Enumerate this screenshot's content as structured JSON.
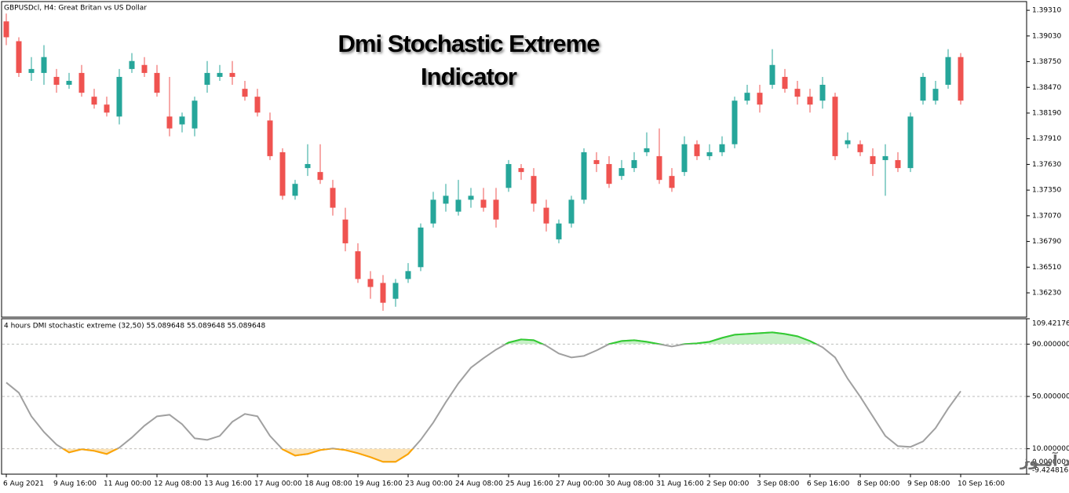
{
  "chart_data": [
    {
      "type": "candlestick",
      "header": "GBPUSDcl, H4:  Great Britan vs US Dollar",
      "title_lines": [
        "Dmi Stochastic Extreme",
        "Indicator"
      ],
      "categories": [
        "6 Aug 2021",
        null,
        null,
        null,
        "9 Aug 16:00",
        null,
        null,
        null,
        "11 Aug 00:00",
        null,
        null,
        null,
        "12 Aug 08:00",
        null,
        null,
        null,
        "13 Aug 16:00",
        null,
        null,
        null,
        "17 Aug 00:00",
        null,
        null,
        null,
        "18 Aug 08:00",
        null,
        null,
        null,
        "19 Aug 16:00",
        null,
        null,
        null,
        "23 Aug 00:00",
        null,
        null,
        null,
        "24 Aug 08:00",
        null,
        null,
        null,
        "25 Aug 16:00",
        null,
        null,
        null,
        "27 Aug 00:00",
        null,
        null,
        null,
        "30 Aug 08:00",
        null,
        null,
        null,
        "31 Aug 16:00",
        null,
        null,
        null,
        "2 Sep 00:00",
        null,
        null,
        null,
        "3 Sep 08:00",
        null,
        null,
        null,
        "6 Sep 16:00",
        null,
        null,
        null,
        "8 Sep 00:00",
        null,
        null,
        null,
        "9 Sep 08:00",
        null,
        null,
        null,
        "10 Sep 16:00"
      ],
      "open": [
        1.39189,
        1.38973,
        1.38627,
        1.38627,
        1.38584,
        1.38498,
        1.38627,
        1.38368,
        1.38282,
        1.38152,
        1.3867,
        1.38714,
        1.38627,
        1.38152,
        1.38066,
        1.38022,
        1.38498,
        1.38584,
        1.38627,
        1.38454,
        1.38368,
        1.38109,
        1.37763,
        1.37288,
        1.3759,
        1.37547,
        1.37374,
        1.37029,
        1.36683,
        1.36381,
        1.36338,
        1.36165,
        1.36381,
        1.3651,
        1.36986,
        1.37202,
        1.37115,
        1.37245,
        1.37245,
        1.37245,
        1.37374,
        1.3759,
        1.37504,
        1.37158,
        1.36813,
        1.36986,
        1.37245,
        1.37677,
        1.37634,
        1.37504,
        1.3759,
        1.37763,
        1.3772,
        1.37504,
        1.37547,
        1.3785,
        1.3772,
        1.37763,
        1.3785,
        1.38325,
        1.38411,
        1.38498,
        1.38584,
        1.38454,
        1.38368,
        1.38325,
        1.38368,
        1.3785,
        1.3785,
        1.3772,
        1.37677,
        1.37677,
        1.3759,
        1.38325,
        1.38325,
        1.38498,
        1.388
      ],
      "high": [
        1.39275,
        1.39016,
        1.388,
        1.3893,
        1.3867,
        1.38627,
        1.38714,
        1.38454,
        1.38368,
        1.3867,
        1.38843,
        1.388,
        1.38714,
        1.38584,
        1.38195,
        1.38368,
        1.38757,
        1.38714,
        1.38757,
        1.38541,
        1.38454,
        1.38195,
        1.37806,
        1.37461,
        1.3785,
        1.3785,
        1.37461,
        1.37158,
        1.3677,
        1.36467,
        1.36424,
        1.36381,
        1.36554,
        1.36986,
        1.37331,
        1.37418,
        1.37461,
        1.37374,
        1.37374,
        1.37374,
        1.37677,
        1.37634,
        1.3759,
        1.37245,
        1.37029,
        1.37288,
        1.37806,
        1.37763,
        1.3772,
        1.37677,
        1.37763,
        1.37979,
        1.38022,
        1.3759,
        1.37936,
        1.37893,
        1.3785,
        1.37936,
        1.38368,
        1.38498,
        1.38498,
        1.38886,
        1.3867,
        1.38541,
        1.38454,
        1.38584,
        1.38411,
        1.37979,
        1.37893,
        1.37806,
        1.3785,
        1.37763,
        1.38195,
        1.38627,
        1.38541,
        1.38886,
        1.38843
      ],
      "low": [
        1.3893,
        1.38584,
        1.38541,
        1.38498,
        1.38411,
        1.38454,
        1.38368,
        1.38238,
        1.38152,
        1.38066,
        1.38627,
        1.38584,
        1.38368,
        1.37936,
        1.37979,
        1.37936,
        1.38411,
        1.38541,
        1.38498,
        1.38325,
        1.38152,
        1.37677,
        1.37245,
        1.37245,
        1.37504,
        1.37418,
        1.37072,
        1.36683,
        1.36338,
        1.36165,
        1.36035,
        1.36078,
        1.36338,
        1.36467,
        1.36942,
        1.37115,
        1.37072,
        1.37158,
        1.37115,
        1.36942,
        1.37331,
        1.37461,
        1.37115,
        1.36899,
        1.3677,
        1.36942,
        1.37202,
        1.37547,
        1.37374,
        1.37461,
        1.37547,
        1.3772,
        1.37418,
        1.37331,
        1.37504,
        1.37677,
        1.37677,
        1.3772,
        1.37806,
        1.38282,
        1.38195,
        1.38454,
        1.38411,
        1.38282,
        1.38195,
        1.38238,
        1.37677,
        1.37806,
        1.3772,
        1.37504,
        1.37288,
        1.37547,
        1.37547,
        1.38282,
        1.38282,
        1.38454,
        1.38282
      ],
      "close": [
        1.39016,
        1.38627,
        1.3867,
        1.388,
        1.38498,
        1.38541,
        1.38411,
        1.38282,
        1.38195,
        1.38584,
        1.38757,
        1.38627,
        1.38411,
        1.38022,
        1.38152,
        1.38325,
        1.38627,
        1.38627,
        1.38584,
        1.38368,
        1.38195,
        1.3772,
        1.37288,
        1.37418,
        1.37634,
        1.37461,
        1.37158,
        1.3677,
        1.36381,
        1.36294,
        1.36122,
        1.36338,
        1.36467,
        1.36942,
        1.37245,
        1.37288,
        1.37245,
        1.37288,
        1.37158,
        1.37029,
        1.37634,
        1.37547,
        1.37202,
        1.36986,
        1.36986,
        1.37245,
        1.37763,
        1.37634,
        1.37418,
        1.3759,
        1.37677,
        1.37806,
        1.37461,
        1.37374,
        1.3785,
        1.3772,
        1.37763,
        1.3785,
        1.38325,
        1.38411,
        1.38282,
        1.38714,
        1.38454,
        1.38368,
        1.38282,
        1.38498,
        1.3772,
        1.37893,
        1.37763,
        1.37634,
        1.3772,
        1.3759,
        1.38152,
        1.38584,
        1.38454,
        1.388,
        1.38325
      ],
      "up_color": "#26a69a",
      "down_color": "#ef5350",
      "ylim": [
        1.35965,
        1.39405
      ],
      "yticks": [
        {
          "value": 1.3931,
          "label": "1.39310"
        },
        {
          "value": 1.3903,
          "label": "1.39030"
        },
        {
          "value": 1.3875,
          "label": "1.38750"
        },
        {
          "value": 1.3847,
          "label": "1.38470"
        },
        {
          "value": 1.3819,
          "label": "1.38190"
        },
        {
          "value": 1.3791,
          "label": "1.37910"
        },
        {
          "value": 1.3763,
          "label": "1.37630"
        },
        {
          "value": 1.3735,
          "label": "1.37350"
        },
        {
          "value": 1.3707,
          "label": "1.37070"
        },
        {
          "value": 1.3679,
          "label": "1.36790"
        },
        {
          "value": 1.3651,
          "label": "1.36510"
        },
        {
          "value": 1.3623,
          "label": "1.36230"
        }
      ]
    },
    {
      "type": "line",
      "label": "4 hours DMI stochastic extreme (32,50) 55.089648 55.089648 55.089648",
      "values": [
        60.6,
        52.8,
        34.8,
        22.8,
        13.2,
        7.2,
        9.6,
        8.4,
        6.0,
        10.8,
        18.6,
        27.6,
        34.8,
        36.0,
        28.8,
        18.0,
        16.8,
        19.8,
        30.6,
        36.6,
        34.8,
        19.8,
        9.6,
        4.8,
        6.0,
        9.0,
        10.2,
        9.0,
        6.6,
        3.6,
        0.0,
        0.0,
        6.0,
        16.8,
        30.0,
        45.6,
        60.0,
        72.0,
        79.2,
        85.8,
        91.2,
        93.6,
        93.0,
        88.8,
        82.8,
        79.8,
        81.0,
        85.2,
        90.0,
        92.4,
        93.0,
        91.8,
        90.0,
        88.2,
        90.0,
        90.6,
        91.8,
        94.8,
        97.2,
        97.8,
        98.4,
        99.0,
        97.8,
        96.0,
        92.4,
        87.6,
        79.8,
        63.6,
        49.8,
        34.8,
        19.8,
        12.0,
        11.4,
        15.6,
        25.8,
        40.8,
        54.0
      ],
      "color": "#a0a0a0",
      "upper_level": 90,
      "lower_level": 10,
      "upper_color": "#32cd32",
      "lower_color": "#ffa500",
      "upper_fill": "#c8f0c8",
      "lower_fill": "#fde3b5",
      "levels": [
        90,
        50,
        10
      ],
      "ylim": [
        -9.424816,
        109.421763
      ],
      "yticks": [
        {
          "value": 109.421763,
          "label": "109.421763"
        },
        {
          "value": 90,
          "label": "90.000000"
        },
        {
          "value": 50,
          "label": "50.000000"
        },
        {
          "value": 10,
          "label": "10.000000"
        },
        {
          "value": 0,
          "label": "0.000000"
        },
        {
          "value": -9.424816,
          "label": "-9.424816"
        }
      ]
    }
  ],
  "watermark": "انتشار در وبسایت سـود آمـوز"
}
